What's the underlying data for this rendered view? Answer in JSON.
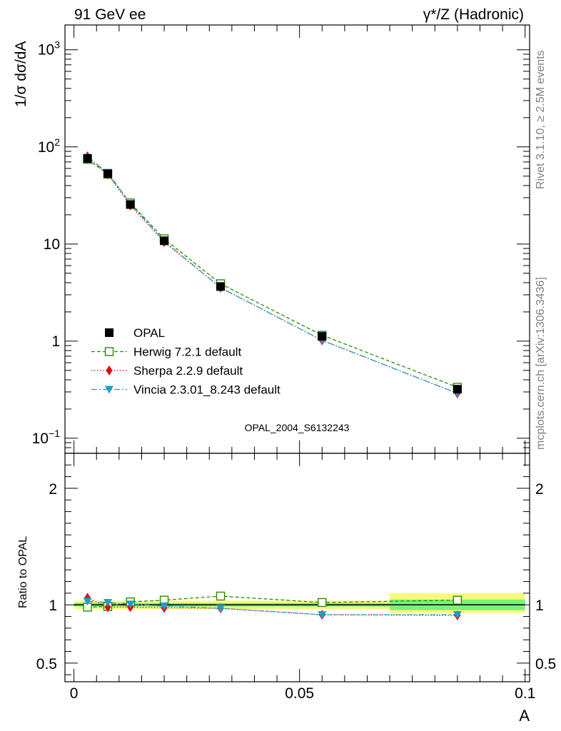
{
  "header": {
    "left": "91 GeV ee",
    "right": "γ*/Z (Hadronic)"
  },
  "side": {
    "rivet": "Rivet 3.1.10, ≥ 2.5M events",
    "mcplots": "mcplots.cern.ch [arXiv:1306.3436]"
  },
  "watermark": "OPAL_2004_S6132243",
  "colors": {
    "data": "#000000",
    "herwig": "#2e8b00",
    "sherpa": "#e8000b",
    "vincia": "#1aa0c8",
    "band_inner": "#7cf07c",
    "band_outer": "#fafa7a"
  },
  "chart_data": [
    {
      "type": "line",
      "ylabel": "1/σ dσ/dA",
      "yscale": "log",
      "ylim": [
        0.07,
        1800
      ],
      "xlim": [
        -0.002,
        0.101
      ],
      "y_ticks": [
        {
          "v": 0.1,
          "label": "10",
          "sup": "−1"
        },
        {
          "v": 1,
          "label": "1",
          "sup": ""
        },
        {
          "v": 10,
          "label": "10",
          "sup": ""
        },
        {
          "v": 100,
          "label": "10",
          "sup": "2"
        },
        {
          "v": 1000,
          "label": "10",
          "sup": "3"
        }
      ],
      "x": [
        0.003,
        0.0075,
        0.0125,
        0.02,
        0.0325,
        0.055,
        0.085
      ],
      "series": [
        {
          "name": "OPAL",
          "key": "data",
          "values": [
            76,
            53,
            25.5,
            10.8,
            3.65,
            1.12,
            0.32
          ]
        },
        {
          "name": "Herwig 7.2.1 default",
          "key": "herwig",
          "values": [
            74.5,
            52.5,
            26.5,
            11.3,
            3.9,
            1.15,
            0.335
          ]
        },
        {
          "name": "Sherpa 2.2.9 default",
          "key": "sherpa",
          "values": [
            80,
            52,
            25,
            10.5,
            3.55,
            1.02,
            0.29
          ]
        },
        {
          "name": "Vincia 2.3.01_8.243 default",
          "key": "vincia",
          "values": [
            78,
            54.5,
            26,
            10.7,
            3.55,
            1.02,
            0.29
          ]
        }
      ]
    },
    {
      "type": "line",
      "xlabel": "A",
      "ylabel": "Ratio to OPAL",
      "yscale": "linear",
      "ylim": [
        0.34,
        2.3
      ],
      "xlim": [
        -0.002,
        0.101
      ],
      "y_ticks": [
        {
          "v": 0.5,
          "label": "0.5"
        },
        {
          "v": 1,
          "label": "1"
        },
        {
          "v": 2,
          "label": "2"
        }
      ],
      "x_ticks": [
        {
          "v": 0,
          "label": "0"
        },
        {
          "v": 0.05,
          "label": "0.05"
        },
        {
          "v": 0.1,
          "label": "0.1"
        }
      ],
      "x": [
        0.003,
        0.0075,
        0.0125,
        0.02,
        0.0325,
        0.055,
        0.085
      ],
      "bands": [
        {
          "x0": 0.0,
          "x1": 0.07,
          "inner": [
            0.985,
            1.015
          ],
          "outer": [
            0.965,
            1.035
          ]
        },
        {
          "x0": 0.07,
          "x1": 0.1,
          "inner": [
            0.955,
            1.045
          ],
          "outer": [
            0.93,
            1.1
          ]
        }
      ],
      "series": [
        {
          "name": "Herwig 7.2.1 default",
          "key": "herwig",
          "values": [
            0.98,
            0.985,
            1.025,
            1.04,
            1.075,
            1.02,
            1.04
          ]
        },
        {
          "name": "Sherpa 2.2.9 default",
          "key": "sherpa",
          "values": [
            1.06,
            0.98,
            0.98,
            0.975,
            0.97,
            0.915,
            0.91
          ]
        },
        {
          "name": "Vincia 2.3.01_8.243 default",
          "key": "vincia",
          "values": [
            1.03,
            1.02,
            1.005,
            0.99,
            0.97,
            0.915,
            0.915
          ]
        }
      ]
    }
  ]
}
